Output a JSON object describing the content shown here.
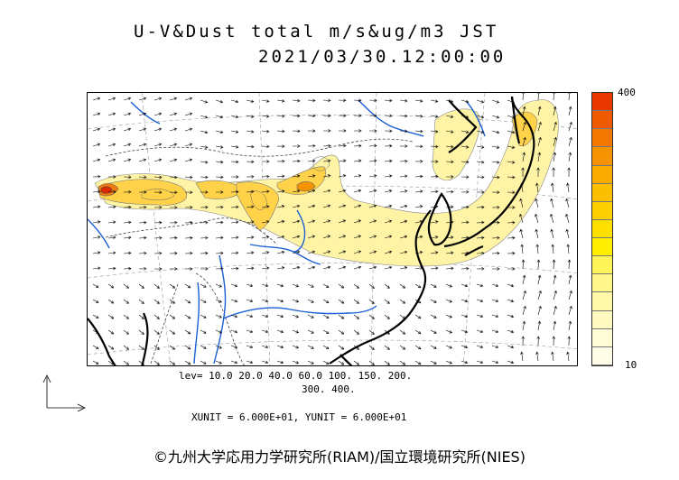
{
  "title": {
    "line1": "U-V&Dust total m/s&ug/m3 JST",
    "line2": "2021/03/30.12:00:00"
  },
  "colorbar": {
    "max_label": "400",
    "min_label": "10",
    "colors": [
      "#e83800",
      "#ef5a00",
      "#f47800",
      "#f79300",
      "#f9ab00",
      "#fbbf00",
      "#fdd100",
      "#fee000",
      "#ffee00",
      "#fff45a",
      "#fff78a",
      "#fff9a8",
      "#fffac0",
      "#fffcd6",
      "#fffde8"
    ]
  },
  "levels": {
    "line1": "lev= 10.0 20.0 40.0 60.0 100. 150. 200.",
    "line2": "300. 400."
  },
  "units": "XUNIT = 6.000E+01, YUNIT = 6.000E+01",
  "credit": "©九州大学応用力学研究所(RIAM)/国立環境研究所(NIES)",
  "map_style": {
    "coast_color": "#000000",
    "river_color": "#1a5fd6",
    "border_color": "#444444",
    "dust_low": "#fff4a6",
    "dust_mid": "#ffd24a",
    "dust_high": "#f07a10",
    "dust_peak": "#e02800"
  }
}
